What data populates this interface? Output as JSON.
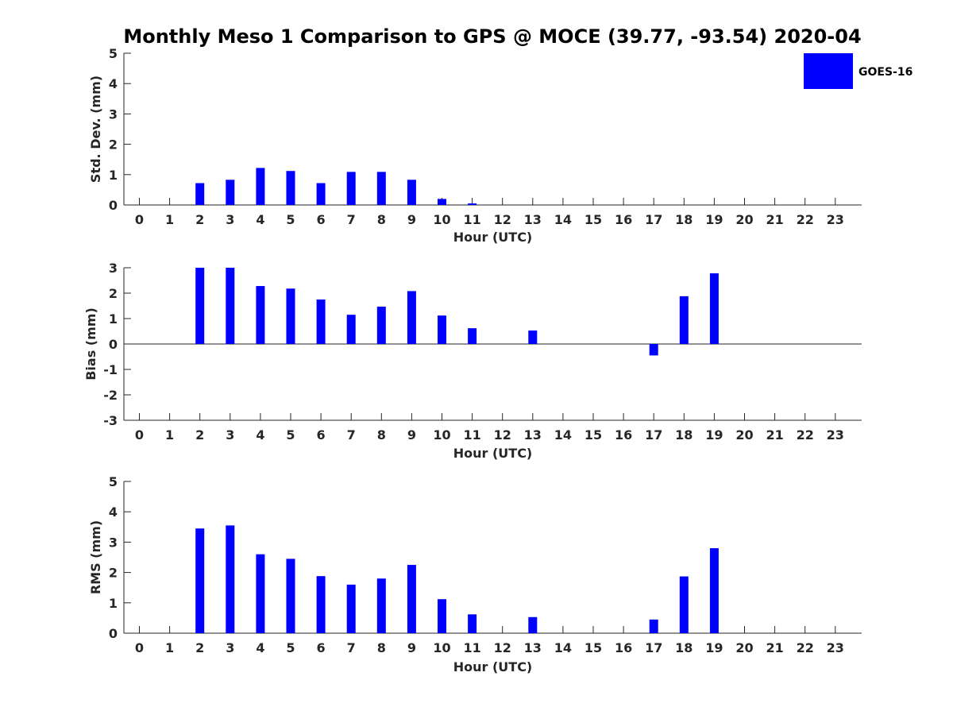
{
  "title": "Monthly Meso 1 Comparison to GPS @ MOCE (39.77, -93.54) 2020-04",
  "legend": {
    "label": "GOES-16",
    "color": "#0000ff",
    "placement": "top-right"
  },
  "bar_color": "#0000ff",
  "chart_data": [
    {
      "type": "bar",
      "categories": [
        "0",
        "1",
        "2",
        "3",
        "4",
        "5",
        "6",
        "7",
        "8",
        "9",
        "10",
        "11",
        "12",
        "13",
        "14",
        "15",
        "16",
        "17",
        "18",
        "19",
        "20",
        "21",
        "22",
        "23"
      ],
      "series": [
        {
          "name": "GOES-16",
          "values": [
            null,
            null,
            0.72,
            0.83,
            1.22,
            1.12,
            0.72,
            1.09,
            1.09,
            0.83,
            0.2,
            0.05,
            null,
            null,
            null,
            null,
            null,
            null,
            null,
            null,
            null,
            null,
            null,
            null
          ]
        }
      ],
      "xlabel": "Hour (UTC)",
      "ylabel": "Std. Dev. (mm)",
      "ylim": [
        0,
        5
      ],
      "yticks": [
        "0",
        "1",
        "2",
        "3",
        "4",
        "5"
      ],
      "zero_line": false,
      "grid": false
    },
    {
      "type": "bar",
      "categories": [
        "0",
        "1",
        "2",
        "3",
        "4",
        "5",
        "6",
        "7",
        "8",
        "9",
        "10",
        "11",
        "12",
        "13",
        "14",
        "15",
        "16",
        "17",
        "18",
        "19",
        "20",
        "21",
        "22",
        "23"
      ],
      "series": [
        {
          "name": "GOES-16",
          "values": [
            null,
            null,
            3.0,
            3.0,
            2.28,
            2.18,
            1.75,
            1.15,
            1.47,
            2.08,
            1.12,
            0.62,
            null,
            0.53,
            null,
            null,
            null,
            -0.45,
            1.88,
            2.78,
            null,
            null,
            null,
            null
          ]
        }
      ],
      "xlabel": "Hour (UTC)",
      "ylabel": "Bias (mm)",
      "ylim": [
        -3,
        3
      ],
      "yticks": [
        "-3",
        "-2",
        "-1",
        "0",
        "1",
        "2",
        "3"
      ],
      "zero_line": true,
      "grid": false
    },
    {
      "type": "bar",
      "categories": [
        "0",
        "1",
        "2",
        "3",
        "4",
        "5",
        "6",
        "7",
        "8",
        "9",
        "10",
        "11",
        "12",
        "13",
        "14",
        "15",
        "16",
        "17",
        "18",
        "19",
        "20",
        "21",
        "22",
        "23"
      ],
      "series": [
        {
          "name": "GOES-16",
          "values": [
            null,
            null,
            3.45,
            3.55,
            2.6,
            2.45,
            1.88,
            1.6,
            1.8,
            2.25,
            1.12,
            0.62,
            null,
            0.53,
            null,
            null,
            null,
            0.45,
            1.87,
            2.8,
            null,
            null,
            null,
            null
          ]
        }
      ],
      "xlabel": "Hour (UTC)",
      "ylabel": "RMS (mm)",
      "ylim": [
        0,
        5
      ],
      "yticks": [
        "0",
        "1",
        "2",
        "3",
        "4",
        "5"
      ],
      "zero_line": false,
      "grid": false
    }
  ]
}
